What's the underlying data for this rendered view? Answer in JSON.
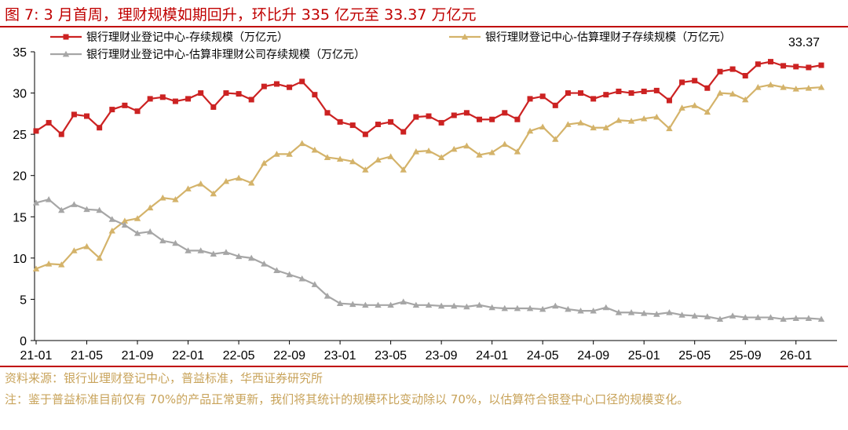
{
  "title": "图 7:  3 月首周，理财规模如期回升，环比升 335 亿元至 33.37 万亿元",
  "source": "资料来源：银行业理财登记中心，普益标准，华西证券研究所",
  "note": "注：鉴于普益标准目前仅有 70%的产品正常更新，我们将其统计的规模环比变动除以 70%，以估算符合银登中心口径的规模变化。",
  "chart_data": {
    "type": "line",
    "ylim": [
      0,
      35
    ],
    "yticks": [
      0,
      5,
      10,
      15,
      20,
      25,
      30,
      35
    ],
    "xtick_labels": [
      "21-01",
      "21-05",
      "21-09",
      "22-01",
      "22-05",
      "22-09",
      "23-01",
      "23-05",
      "23-09",
      "24-01",
      "24-05",
      "24-09",
      "25-01",
      "25-05",
      "25-09",
      "26-01"
    ],
    "annotation": {
      "text": "33.37",
      "series_index": 0,
      "point_index": 62
    },
    "legend_placement": "top",
    "series": [
      {
        "name": "银行理财业登记中心-存续规模（万亿元）",
        "color": "#cc2222",
        "marker": "square",
        "values": [
          25.4,
          26.4,
          25.0,
          27.4,
          27.2,
          25.8,
          28.0,
          28.5,
          27.8,
          29.3,
          29.5,
          29.0,
          29.3,
          30.0,
          28.3,
          30.0,
          29.9,
          29.2,
          30.8,
          31.1,
          30.7,
          31.4,
          29.8,
          27.6,
          26.5,
          26.1,
          25.0,
          26.2,
          26.5,
          25.3,
          27.1,
          27.2,
          26.4,
          27.3,
          27.6,
          26.8,
          26.8,
          27.6,
          26.8,
          29.3,
          29.6,
          28.5,
          30.0,
          30.0,
          29.3,
          29.8,
          30.2,
          30.0,
          30.2,
          30.3,
          29.1,
          31.3,
          31.5,
          30.6,
          32.6,
          32.9,
          32.1,
          33.5,
          33.8,
          33.3,
          33.2,
          33.1,
          33.37
        ]
      },
      {
        "name": "银行理财登记中心-估算理财子存续规模（万亿元）",
        "color": "#d4b36a",
        "marker": "triangle",
        "values": [
          8.7,
          9.3,
          9.2,
          10.9,
          11.4,
          10.0,
          13.3,
          14.5,
          14.8,
          16.1,
          17.3,
          17.1,
          18.4,
          19.0,
          17.8,
          19.3,
          19.7,
          19.1,
          21.5,
          22.6,
          22.6,
          23.9,
          23.1,
          22.2,
          22.0,
          21.7,
          20.7,
          21.9,
          22.3,
          20.7,
          22.9,
          23.0,
          22.2,
          23.2,
          23.6,
          22.5,
          22.8,
          23.8,
          22.9,
          25.4,
          25.9,
          24.4,
          26.2,
          26.4,
          25.8,
          25.8,
          26.7,
          26.6,
          26.9,
          27.1,
          25.7,
          28.2,
          28.5,
          27.7,
          30.0,
          29.9,
          29.2,
          30.7,
          31.0,
          30.7,
          30.5,
          30.6,
          30.7
        ]
      },
      {
        "name": "银行理财业登记中心-估算非理财公司存续规模（万亿元）",
        "color": "#a6a6a6",
        "marker": "triangle",
        "values": [
          16.7,
          17.1,
          15.8,
          16.5,
          15.9,
          15.8,
          14.7,
          14.0,
          13.0,
          13.2,
          12.1,
          11.8,
          10.9,
          10.9,
          10.5,
          10.7,
          10.2,
          10.0,
          9.3,
          8.5,
          8.0,
          7.5,
          6.8,
          5.4,
          4.5,
          4.4,
          4.3,
          4.3,
          4.3,
          4.7,
          4.3,
          4.3,
          4.2,
          4.2,
          4.1,
          4.3,
          4.0,
          3.9,
          3.9,
          3.9,
          3.8,
          4.2,
          3.8,
          3.6,
          3.6,
          4.0,
          3.4,
          3.4,
          3.3,
          3.2,
          3.4,
          3.1,
          3.0,
          2.9,
          2.6,
          3.0,
          2.8,
          2.8,
          2.8,
          2.6,
          2.7,
          2.7,
          2.6
        ]
      }
    ]
  }
}
